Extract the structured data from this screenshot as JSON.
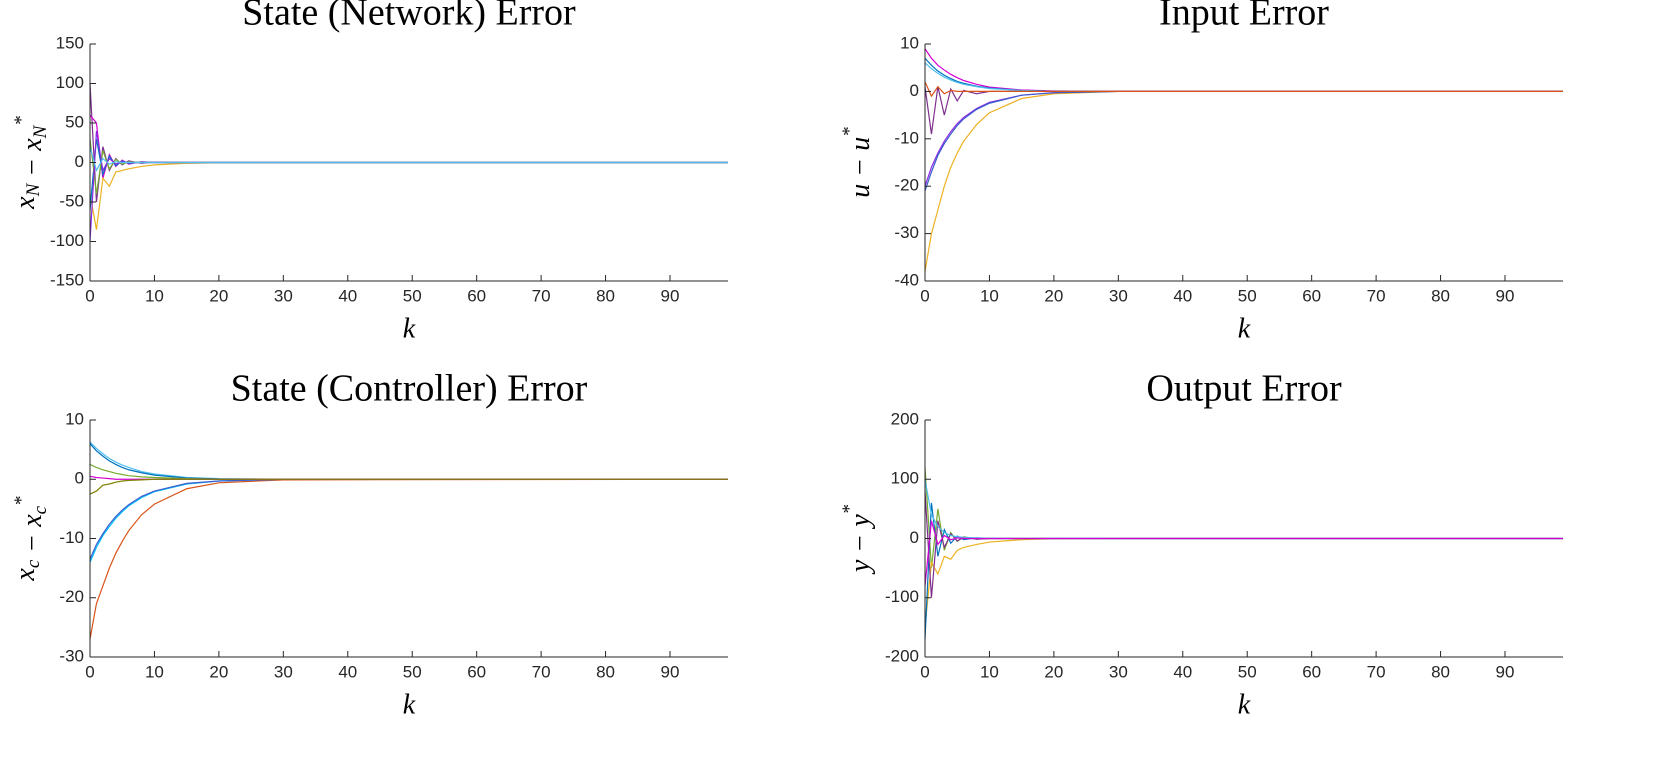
{
  "chart_data": [
    {
      "type": "line",
      "title": "State (Network) Error",
      "xlabel": "k",
      "ylabel": [
        {
          "text": "x",
          "sub": "N"
        },
        {
          "text": " − "
        },
        {
          "text": "x",
          "sub": "N",
          "sup": "*"
        }
      ],
      "x": [
        0,
        1,
        2,
        3,
        4,
        5,
        6,
        8,
        10,
        15,
        20,
        30,
        99
      ],
      "xlim": [
        0,
        99
      ],
      "xticks": [
        0,
        10,
        20,
        30,
        40,
        50,
        60,
        70,
        80,
        90
      ],
      "ylim": [
        -150,
        150
      ],
      "yticks": [
        -150,
        -100,
        -50,
        0,
        50,
        100,
        150
      ],
      "series": [
        {
          "color": "#7E2F8E",
          "values": [
            100,
            -50,
            20,
            -10,
            5,
            -3,
            2,
            -1,
            0.5,
            0,
            0,
            0,
            0
          ]
        },
        {
          "color": "#D400D4",
          "values": [
            60,
            50,
            -20,
            10,
            -5,
            3,
            -2,
            1,
            0,
            0,
            0,
            0,
            0
          ]
        },
        {
          "color": "#EDB120",
          "values": [
            -40,
            -85,
            -20,
            -30,
            -12,
            -10,
            -8,
            -5,
            -3,
            -1,
            -0.3,
            0,
            0
          ]
        },
        {
          "color": "#0072BD",
          "values": [
            -60,
            30,
            -15,
            8,
            -4,
            2,
            -1,
            0.5,
            0,
            0,
            0,
            0,
            0
          ]
        },
        {
          "color": "#77AC30",
          "values": [
            30,
            -40,
            15,
            -8,
            4,
            -2,
            1,
            0,
            0,
            0,
            0,
            0,
            0
          ]
        },
        {
          "color": "#8A2BE2",
          "values": [
            -100,
            40,
            -10,
            5,
            -2,
            1,
            0,
            0,
            0,
            0,
            0,
            0,
            0
          ]
        },
        {
          "color": "#4DBEEE",
          "values": [
            20,
            -10,
            5,
            -2,
            1,
            0,
            0,
            0,
            0,
            0,
            0,
            0,
            0
          ]
        }
      ]
    },
    {
      "type": "line",
      "title": "Input Error",
      "xlabel": "k",
      "ylabel": [
        {
          "text": "u − u",
          "sup": "*"
        }
      ],
      "x": [
        0,
        1,
        2,
        3,
        4,
        5,
        6,
        8,
        10,
        15,
        20,
        30,
        99
      ],
      "xlim": [
        0,
        99
      ],
      "xticks": [
        0,
        10,
        20,
        30,
        40,
        50,
        60,
        70,
        80,
        90
      ],
      "ylim": [
        -40,
        10
      ],
      "yticks": [
        -40,
        -30,
        -20,
        -10,
        0,
        10
      ],
      "series": [
        {
          "color": "#D400D4",
          "values": [
            9,
            7,
            5.5,
            4.5,
            3.6,
            2.9,
            2.3,
            1.5,
            0.9,
            0.3,
            0.1,
            0,
            0
          ]
        },
        {
          "color": "#0072BD",
          "values": [
            7,
            5.5,
            4.3,
            3.4,
            2.7,
            2.1,
            1.7,
            1.1,
            0.7,
            0.2,
            0.05,
            0,
            0
          ]
        },
        {
          "color": "#4DBEEE",
          "values": [
            6,
            4.8,
            3.8,
            3,
            2.4,
            1.9,
            1.5,
            1,
            0.6,
            0.2,
            0,
            0,
            0
          ]
        },
        {
          "color": "#EDB120",
          "values": [
            -38,
            -30,
            -25,
            -20,
            -16,
            -13,
            -10.5,
            -7,
            -4.5,
            -1.5,
            -0.5,
            0,
            0
          ]
        },
        {
          "color": "#8A2BE2",
          "values": [
            -20,
            -16,
            -13,
            -10.5,
            -8.5,
            -6.8,
            -5.5,
            -3.6,
            -2.3,
            -0.8,
            -0.25,
            0,
            0
          ]
        },
        {
          "color": "#3A5FCD",
          "values": [
            -21,
            -17,
            -13.5,
            -11,
            -9,
            -7.2,
            -5.8,
            -3.8,
            -2.5,
            -0.8,
            -0.3,
            0,
            0
          ]
        },
        {
          "color": "#7E2F8E",
          "values": [
            1,
            -9,
            1,
            -5,
            0.5,
            -2,
            0.2,
            -0.5,
            0,
            0,
            0,
            0,
            0
          ]
        },
        {
          "color": "#D95319",
          "values": [
            2,
            -1,
            1,
            -0.5,
            0.2,
            0,
            0,
            0,
            0,
            0,
            0,
            0,
            0
          ]
        }
      ]
    },
    {
      "type": "line",
      "title": "State (Controller) Error",
      "xlabel": "k",
      "ylabel": [
        {
          "text": "x",
          "sub": "c"
        },
        {
          "text": " − "
        },
        {
          "text": "x",
          "sub": "c",
          "sup": "*"
        }
      ],
      "x": [
        0,
        1,
        2,
        3,
        4,
        5,
        6,
        8,
        10,
        15,
        20,
        30,
        99
      ],
      "xlim": [
        0,
        99
      ],
      "xticks": [
        0,
        10,
        20,
        30,
        40,
        50,
        60,
        70,
        80,
        90
      ],
      "ylim": [
        -30,
        10
      ],
      "yticks": [
        -30,
        -20,
        -10,
        0,
        10
      ],
      "series": [
        {
          "color": "#4DBEEE",
          "values": [
            6.3,
            5.2,
            4.3,
            3.5,
            2.9,
            2.4,
            2,
            1.3,
            0.9,
            0.3,
            0.1,
            0,
            0
          ]
        },
        {
          "color": "#0072BD",
          "values": [
            6,
            4.8,
            3.9,
            3.1,
            2.5,
            2,
            1.6,
            1.1,
            0.7,
            0.2,
            0.05,
            0,
            0
          ]
        },
        {
          "color": "#77AC30",
          "values": [
            2.5,
            2,
            1.6,
            1.3,
            1,
            0.8,
            0.6,
            0.4,
            0.3,
            0.1,
            0,
            0,
            0
          ]
        },
        {
          "color": "#D95319",
          "values": [
            -27,
            -21,
            -18,
            -15,
            -12.5,
            -10.5,
            -8.7,
            -6,
            -4.2,
            -1.6,
            -0.6,
            -0.1,
            0
          ]
        },
        {
          "color": "#00BFFF",
          "values": [
            -14,
            -11.5,
            -9.5,
            -8,
            -6.6,
            -5.5,
            -4.5,
            -3.1,
            -2.1,
            -0.8,
            -0.3,
            0,
            0
          ]
        },
        {
          "color": "#3A5FCD",
          "values": [
            -13.5,
            -11,
            -9.2,
            -7.6,
            -6.3,
            -5.2,
            -4.3,
            -2.9,
            -2,
            -0.7,
            -0.3,
            0,
            0
          ]
        },
        {
          "color": "#D400D4",
          "values": [
            0.5,
            0.3,
            0.2,
            0.1,
            0,
            0,
            0,
            0,
            0,
            0,
            0,
            0,
            0
          ]
        },
        {
          "color": "#808000",
          "values": [
            -2.5,
            -2,
            -1,
            -0.8,
            -0.5,
            -0.3,
            -0.2,
            -0.1,
            0,
            0,
            0,
            0,
            0
          ]
        }
      ]
    },
    {
      "type": "line",
      "title": "Output Error",
      "xlabel": "k",
      "ylabel": [
        {
          "text": "y − y",
          "sup": "*"
        }
      ],
      "x": [
        0,
        1,
        2,
        3,
        4,
        5,
        6,
        8,
        10,
        15,
        20,
        30,
        99
      ],
      "xlim": [
        0,
        99
      ],
      "xticks": [
        0,
        10,
        20,
        30,
        40,
        50,
        60,
        70,
        80,
        90
      ],
      "ylim": [
        -200,
        200
      ],
      "yticks": [
        -200,
        -100,
        0,
        100,
        200
      ],
      "series": [
        {
          "color": "#77AC30",
          "values": [
            120,
            -50,
            50,
            -20,
            10,
            -5,
            3,
            -1,
            0,
            0,
            0,
            0,
            0
          ]
        },
        {
          "color": "#EDB120",
          "values": [
            -150,
            -40,
            -60,
            -30,
            -35,
            -20,
            -15,
            -10,
            -6,
            -2,
            -0.5,
            0,
            0
          ]
        },
        {
          "color": "#0072BD",
          "values": [
            -170,
            60,
            -30,
            15,
            -8,
            4,
            -2,
            1,
            0,
            0,
            0,
            0,
            0
          ]
        },
        {
          "color": "#7E2F8E",
          "values": [
            80,
            -100,
            30,
            -15,
            8,
            -4,
            2,
            -1,
            0,
            0,
            0,
            0,
            0
          ]
        },
        {
          "color": "#4DBEEE",
          "values": [
            100,
            40,
            20,
            10,
            5,
            3,
            2,
            1,
            0.5,
            0,
            0,
            0,
            0
          ]
        },
        {
          "color": "#D400D4",
          "values": [
            -80,
            30,
            -10,
            5,
            -2,
            1,
            0,
            0,
            0,
            0,
            0,
            0,
            0
          ]
        }
      ]
    }
  ]
}
